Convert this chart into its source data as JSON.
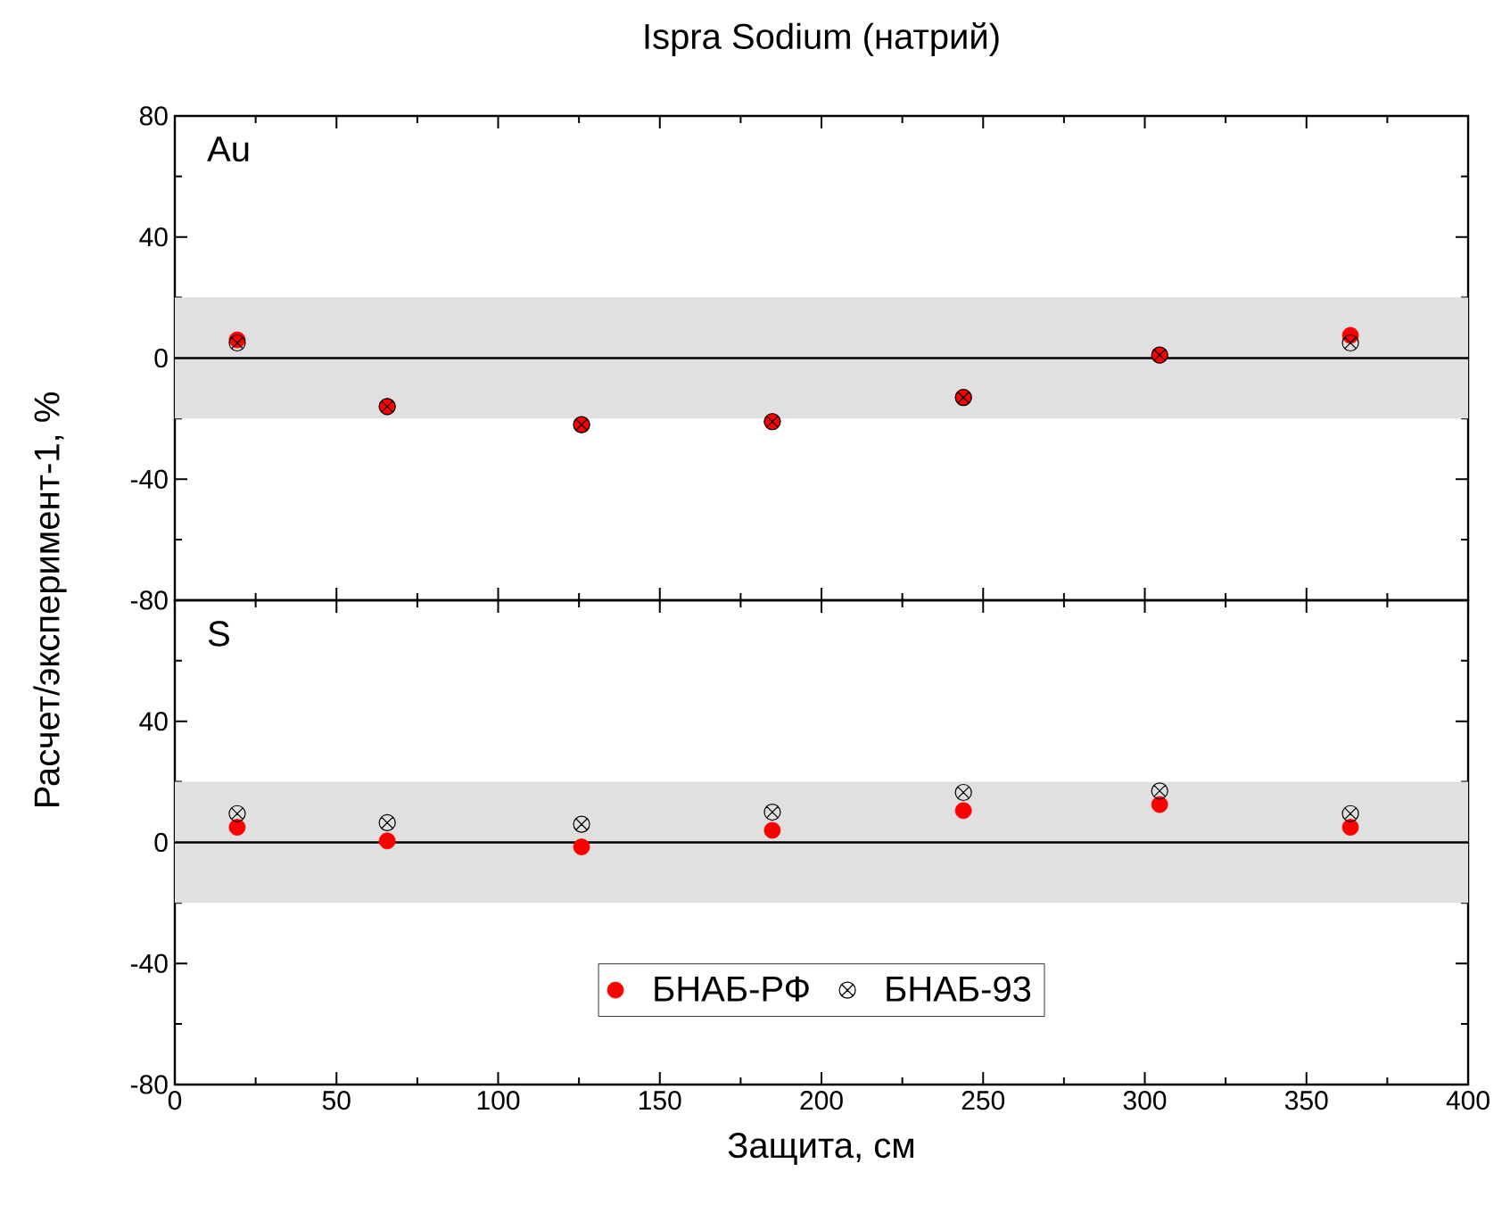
{
  "chart_data": [
    {
      "type": "scatter",
      "title": "Ispra Sodium (натрий)",
      "ylabel": "Расчет/эксперимент-1, %",
      "annotations": [
        "Au"
      ],
      "x": [
        19.3,
        65.7,
        125.8,
        184.8,
        243.9,
        304.6,
        363.6
      ],
      "series": [
        {
          "color": "#ff0000",
          "marker": "circle",
          "values": [
            6,
            -16,
            -22,
            -21,
            -13,
            1,
            7.5
          ]
        },
        {
          "color": "#000000",
          "marker": "cross",
          "values": [
            5,
            -16,
            -22,
            -21,
            -13,
            1,
            5
          ]
        }
      ],
      "xlim": [
        0,
        400
      ],
      "ylim": [
        -80,
        80
      ],
      "xticks": [
        0,
        50,
        100,
        150,
        200,
        250,
        300,
        350,
        400
      ],
      "yticks": [
        -80,
        -40,
        0,
        40,
        80
      ],
      "tick_labels": "y",
      "bands": [
        {
          "axis": "y",
          "from": -20,
          "to": 20,
          "color": "#e0e0e0"
        }
      ],
      "ref_lines": [
        {
          "axis": "y",
          "value": 0,
          "color": "#000000"
        }
      ]
    },
    {
      "type": "scatter",
      "xlabel": "Защита, см",
      "annotations": [
        "S"
      ],
      "x": [
        19.3,
        65.7,
        125.8,
        184.8,
        243.9,
        304.6,
        363.6
      ],
      "series": [
        {
          "name": "БНАБ-РФ",
          "color": "#ff0000",
          "marker": "circle",
          "values": [
            5,
            0.5,
            -1.5,
            4,
            10.5,
            12.5,
            5
          ]
        },
        {
          "name": "БНАБ-93",
          "color": "#000000",
          "marker": "cross",
          "values": [
            9.5,
            6.5,
            6,
            10,
            16.5,
            17,
            9.5
          ]
        }
      ],
      "xlim": [
        0,
        400
      ],
      "ylim": [
        -80,
        80
      ],
      "xticks": [
        0,
        50,
        100,
        150,
        200,
        250,
        300,
        350,
        400
      ],
      "yticks": [
        -80,
        -40,
        0,
        40,
        {
          "value": 80,
          "label": null
        }
      ],
      "legend": "bottom",
      "bands": [
        {
          "axis": "y",
          "from": -20,
          "to": 20,
          "color": "#e0e0e0"
        }
      ],
      "ref_lines": [
        {
          "axis": "y",
          "value": 0,
          "color": "#000000"
        }
      ]
    }
  ]
}
